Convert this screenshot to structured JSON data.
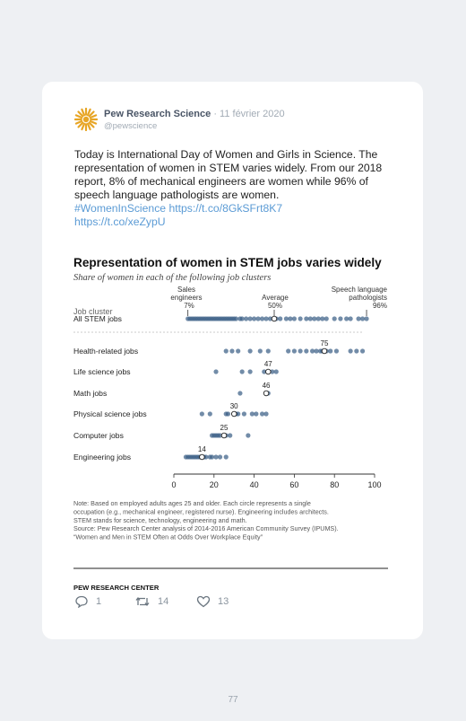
{
  "tweet": {
    "author_name": "Pew Research Science",
    "date": "· 11 février 2020",
    "handle": "@pewscience",
    "text": "Today is International Day of Women and Girls in Science. The representation of women in STEM varies widely. From our 2018 report, 8% of mechanical engineers are women while 96% of speech language pathologists are women.",
    "hashtag": "#WomenInScience",
    "link1": "https://t.co/8GkSFrt8K7",
    "link2": "https://t.co/xeZypU"
  },
  "actions": {
    "replies": "1",
    "retweets": "14",
    "likes": "13"
  },
  "page_number": "77",
  "chart_data": {
    "type": "scatter",
    "title": "Representation  of women in STEM jobs varies widely",
    "subtitle": "Share of women in each of the following job clusters",
    "column_header": "Job cluster",
    "xlim": [
      0,
      100
    ],
    "x_ticks": [
      0,
      20,
      40,
      60,
      80,
      100
    ],
    "annotations": {
      "sales_label1": "Sales",
      "sales_label2": "engineers",
      "sales_value": "7%",
      "avg_label": "Average",
      "avg_value": "50%",
      "speech_label1": "Speech language",
      "speech_label2": "pathologists",
      "speech_value": "96%"
    },
    "clusters": [
      {
        "label": "All STEM jobs",
        "average": 50,
        "values": [
          7,
          8,
          9,
          10,
          11,
          12,
          13,
          14,
          15,
          16,
          17,
          18,
          19,
          20,
          21,
          22,
          23,
          24,
          25,
          26,
          27,
          28,
          29,
          30,
          31,
          33,
          34,
          36,
          38,
          40,
          42,
          44,
          46,
          48,
          51,
          53,
          56,
          58,
          60,
          63,
          66,
          68,
          70,
          72,
          74,
          76,
          80,
          83,
          86,
          88,
          92,
          94,
          96
        ]
      },
      {
        "label": "Health-related jobs",
        "average": 75,
        "values": [
          26,
          29,
          32,
          38,
          43,
          47,
          57,
          60,
          63,
          66,
          69,
          71,
          73,
          74,
          76,
          78,
          81,
          88,
          91,
          94
        ]
      },
      {
        "label": "Life science jobs",
        "average": 47,
        "values": [
          21,
          34,
          38,
          45,
          47,
          49,
          51
        ]
      },
      {
        "label": "Math jobs",
        "average": 46,
        "values": [
          33,
          46,
          47
        ]
      },
      {
        "label": "Physical science jobs",
        "average": 30,
        "values": [
          14,
          18,
          26,
          27,
          30,
          31,
          32,
          35,
          39,
          41,
          44,
          46
        ]
      },
      {
        "label": "Computer jobs",
        "average": 25,
        "values": [
          19,
          20,
          21,
          22,
          23,
          25,
          26,
          28,
          37
        ]
      },
      {
        "label": "Engineering jobs",
        "average": 14,
        "values": [
          6,
          7,
          8,
          9,
          10,
          11,
          12,
          13,
          14,
          15,
          16,
          18,
          19,
          21,
          23,
          26
        ]
      }
    ],
    "note_lines": [
      "Note: Based on employed adults ages 25 and older. Each circle represents a single",
      "occupation (e.g., mechanical engineer, registered nurse). Engineering includes architects.",
      "STEM stands for science, technology, engineering and math.",
      "Source: Pew Research Center analysis of 2014-2016 American Community Survey (IPUMS).",
      "“Women and Men in STEM Often at Odds Over Workplace Equity”"
    ],
    "source_org": "PEW RESEARCH CENTER",
    "colors": {
      "dot": "#3b5f86",
      "average": "#ffffff",
      "text": "#222222"
    }
  }
}
